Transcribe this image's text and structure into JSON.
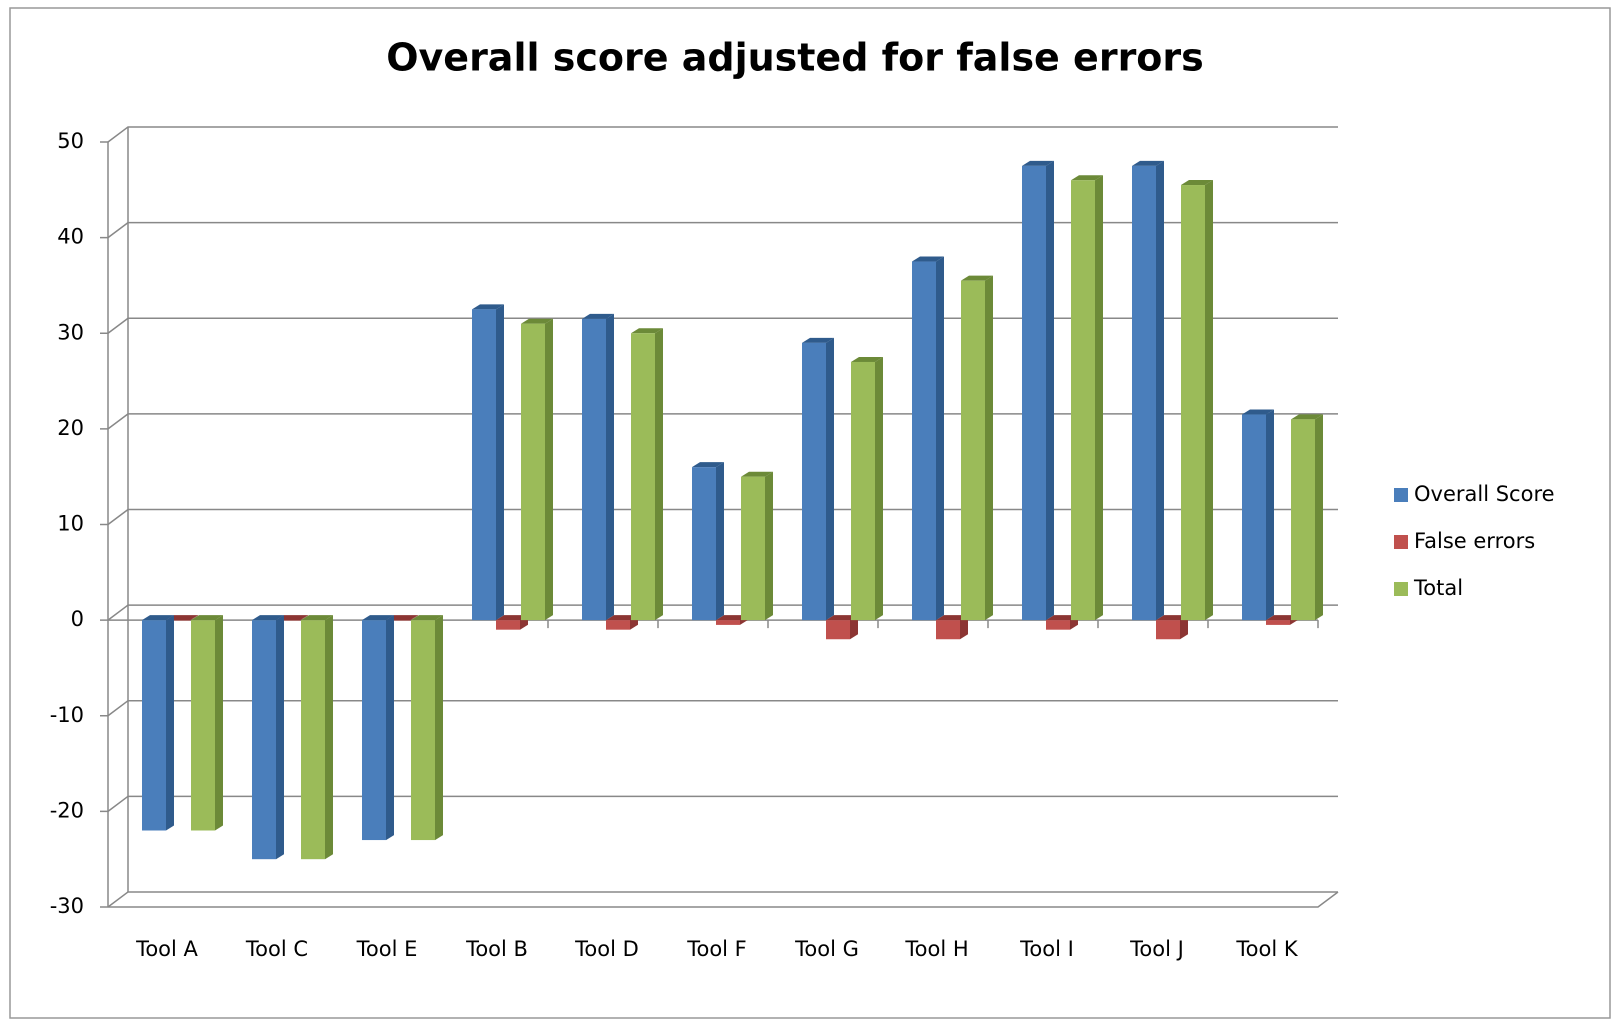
{
  "chart_data": {
    "type": "bar3d",
    "title": "Overall score adjusted for false errors",
    "categories": [
      "Tool A",
      "Tool C",
      "Tool E",
      "Tool B",
      "Tool D",
      "Tool F",
      "Tool G",
      "Tool H",
      "Tool I",
      "Tool J",
      "Tool K"
    ],
    "series": [
      {
        "name": "Overall Score",
        "color": "#4a7ebb",
        "side": "#2f5b8c",
        "values": [
          -22,
          -25,
          -23,
          32.5,
          31.5,
          16,
          29,
          37.5,
          47.5,
          47.5,
          21.5
        ]
      },
      {
        "name": "False errors",
        "color": "#c0504d",
        "side": "#8c3533",
        "values": [
          0,
          0,
          0,
          -1,
          -1,
          -0.5,
          -2,
          -2,
          -1,
          -2,
          -0.5
        ]
      },
      {
        "name": "Total",
        "color": "#9bbb59",
        "side": "#6c8a38",
        "values": [
          -22,
          -25,
          -23,
          31,
          30,
          15,
          27,
          35.5,
          46,
          45.5,
          21
        ]
      }
    ],
    "ylim": [
      -30,
      50
    ],
    "yticks": [
      -30,
      -20,
      -10,
      0,
      10,
      20,
      30,
      40,
      50
    ],
    "grid": true,
    "legend": "right"
  }
}
